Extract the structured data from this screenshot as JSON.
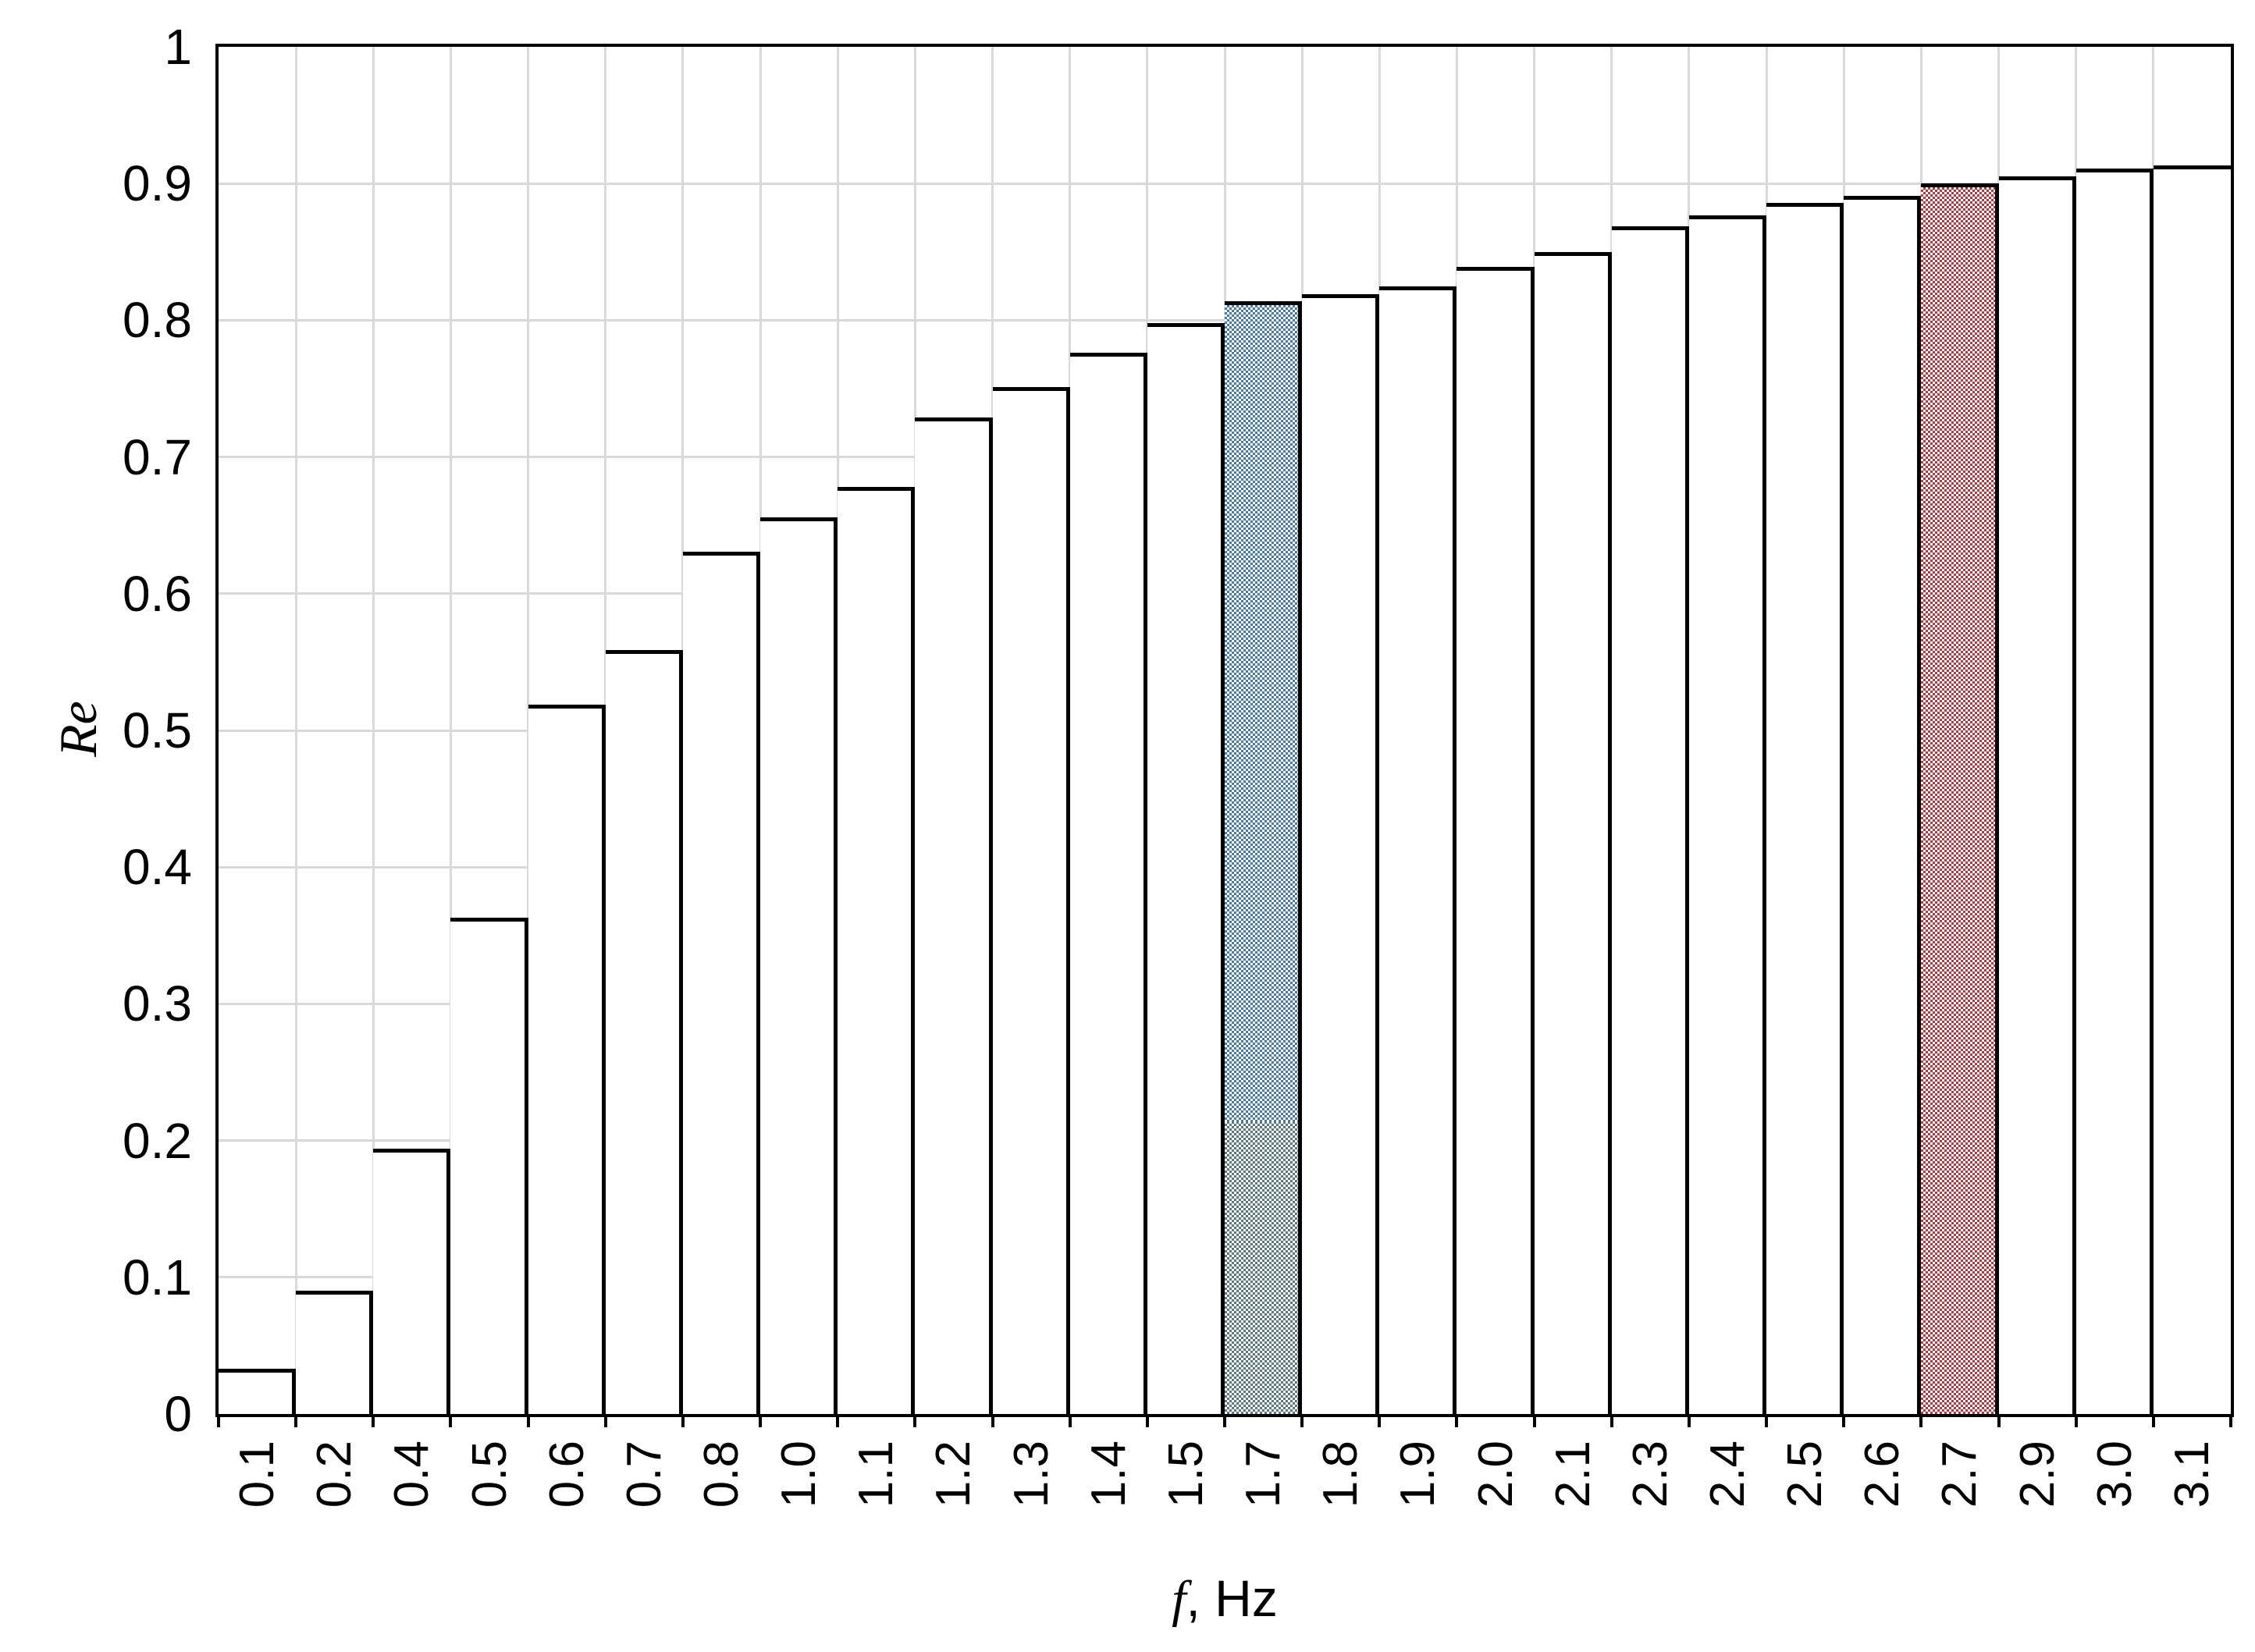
{
  "chart_data": {
    "type": "bar",
    "title": "",
    "xlabel_italic": "f",
    "xlabel_unit": ", Hz",
    "ylabel": "Re",
    "ylim": [
      0,
      1
    ],
    "grid": "light gray horizontal lines every 0.1 and vertical lines at every bar boundary, drawn behind bars",
    "legend": "none",
    "y_tick_labels": [
      "1",
      "0.9",
      "0.8",
      "0.7",
      "0.6",
      "0.5",
      "0.4",
      "0.3",
      "0.2",
      "0.1",
      "0"
    ],
    "y_tick_values": [
      1,
      0.9,
      0.8,
      0.7,
      0.6,
      0.5,
      0.4,
      0.3,
      0.2,
      0.1,
      0
    ],
    "categories": [
      "0.1",
      "0.2",
      "0.4",
      "0.5",
      "0.6",
      "0.7",
      "0.8",
      "1.0",
      "1.1",
      "1.2",
      "1.3",
      "1.4",
      "1.5",
      "1.7",
      "1.8",
      "1.9",
      "2.0",
      "2.1",
      "2.3",
      "2.4",
      "2.5",
      "2.6",
      "2.7",
      "2.9",
      "3.0",
      "3.1"
    ],
    "values": [
      0.033,
      0.09,
      0.194,
      0.363,
      0.519,
      0.559,
      0.631,
      0.656,
      0.678,
      0.729,
      0.751,
      0.776,
      0.798,
      0.814,
      0.819,
      0.825,
      0.839,
      0.85,
      0.869,
      0.877,
      0.886,
      0.891,
      0.9,
      0.905,
      0.911,
      0.913
    ],
    "bar_style": {
      "fill": "#ffffff",
      "border": "#000000"
    },
    "highlighted_bars": [
      {
        "category": "1.7",
        "value": 0.814,
        "style": "blue checker pattern fill",
        "pattern_color": "#4a7ca3",
        "overlay_segment": {
          "from": 0,
          "to": 0.215,
          "style": "gray-teal checker pattern (overlap of blue bar and translucent gray bar)",
          "pattern_color": "#5b7a80"
        }
      },
      {
        "category": "2.7",
        "value": 0.9,
        "style": "red checker pattern fill",
        "pattern_color": "#ae3a42"
      }
    ],
    "colors": {
      "gridline": "#d9d9d9",
      "axis_frame": "#000000",
      "background": "#ffffff"
    }
  }
}
